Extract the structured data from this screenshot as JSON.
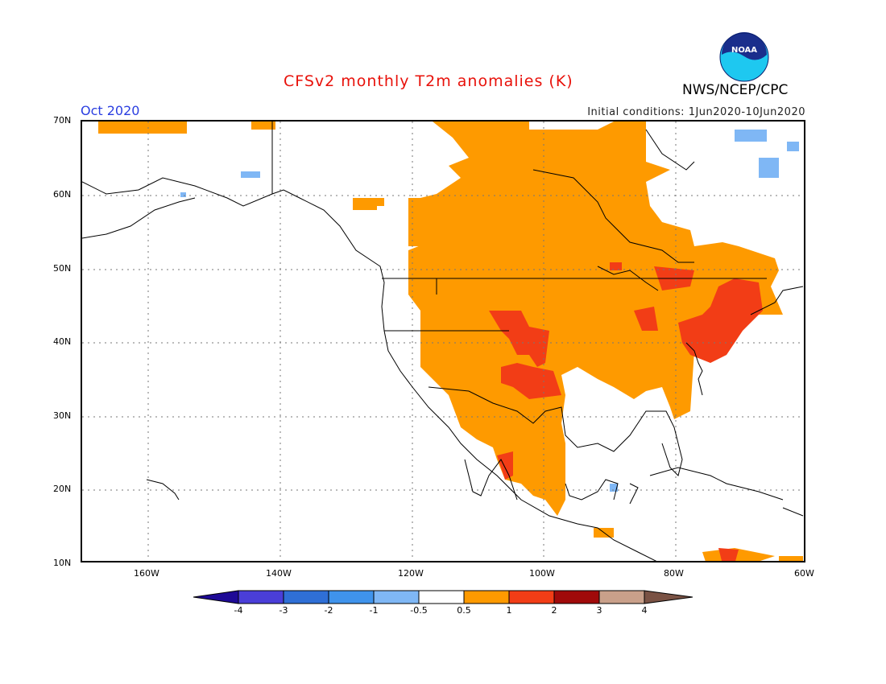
{
  "header": {
    "title": "CFSv2 monthly T2m anomalies (K)",
    "month": "Oct 2020",
    "initial_conditions": "Initial conditions: 1Jun2020-10Jun2020",
    "agency": "NWS/NCEP/CPC",
    "logo_text": "NOAA"
  },
  "map": {
    "lat_labels": [
      "70N",
      "60N",
      "50N",
      "40N",
      "30N",
      "20N",
      "10N"
    ],
    "lon_labels": [
      "160W",
      "140W",
      "120W",
      "100W",
      "80W",
      "60W"
    ],
    "lat_range": [
      10,
      70
    ],
    "lon_range": [
      -170,
      -60
    ],
    "grid": true
  },
  "legend": {
    "ticks": [
      "-4",
      "-3",
      "-2",
      "-1",
      "-0.5",
      "0.5",
      "1",
      "2",
      "3",
      "4"
    ],
    "colors": [
      "#1e0a96",
      "#4a3ed8",
      "#2f6fd6",
      "#3f93ec",
      "#7fb7f5",
      "#ffffff",
      "#fe9a00",
      "#f23d16",
      "#a00a0a",
      "#c9a08a",
      "#7a5244"
    ],
    "unit": "K"
  }
}
